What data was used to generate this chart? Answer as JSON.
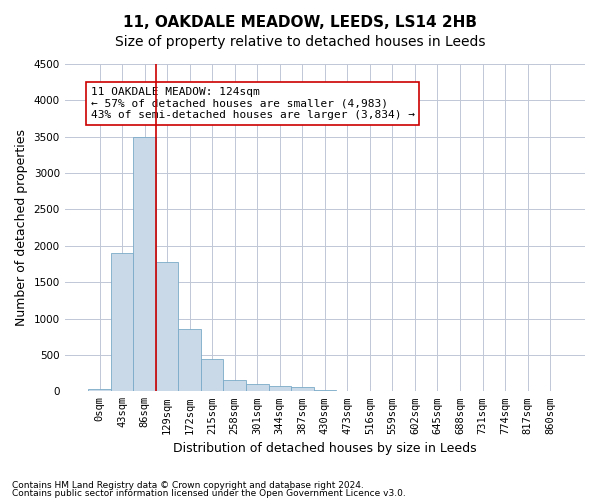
{
  "title": "11, OAKDALE MEADOW, LEEDS, LS14 2HB",
  "subtitle": "Size of property relative to detached houses in Leeds",
  "xlabel": "Distribution of detached houses by size in Leeds",
  "ylabel": "Number of detached properties",
  "bar_color": "#c9d9e8",
  "bar_edge_color": "#7aaac8",
  "grid_color": "#c0c8d8",
  "categories": [
    "0sqm",
    "43sqm",
    "86sqm",
    "129sqm",
    "172sqm",
    "215sqm",
    "258sqm",
    "301sqm",
    "344sqm",
    "387sqm",
    "430sqm",
    "473sqm",
    "516sqm",
    "559sqm",
    "602sqm",
    "645sqm",
    "688sqm",
    "731sqm",
    "774sqm",
    "817sqm",
    "860sqm"
  ],
  "values": [
    30,
    1900,
    3500,
    1780,
    850,
    450,
    160,
    95,
    70,
    55,
    20,
    0,
    0,
    0,
    0,
    0,
    0,
    0,
    0,
    0,
    0
  ],
  "property_size": 124,
  "property_bin_index": 2,
  "vline_color": "#cc0000",
  "annotation_text": "11 OAKDALE MEADOW: 124sqm\n← 57% of detached houses are smaller (4,983)\n43% of semi-detached houses are larger (3,834) →",
  "annotation_box_color": "#ffffff",
  "annotation_box_edge": "#cc0000",
  "ylim": [
    0,
    4500
  ],
  "yticks": [
    0,
    500,
    1000,
    1500,
    2000,
    2500,
    3000,
    3500,
    4000,
    4500
  ],
  "footnote1": "Contains HM Land Registry data © Crown copyright and database right 2024.",
  "footnote2": "Contains public sector information licensed under the Open Government Licence v3.0.",
  "background_color": "#ffffff",
  "title_fontsize": 11,
  "subtitle_fontsize": 10,
  "axis_label_fontsize": 9,
  "tick_fontsize": 7.5,
  "annotation_fontsize": 8
}
